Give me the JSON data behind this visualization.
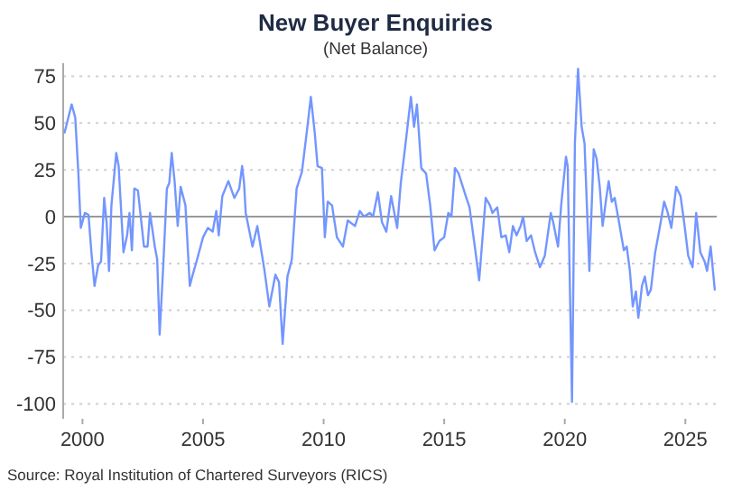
{
  "chart_data": {
    "type": "line",
    "title": "New Buyer Enquiries",
    "subtitle": "(Net Balance)",
    "annotations": [
      "Source: Royal Institution of Chartered Surveyors (RICS)"
    ],
    "xlim": [
      1999.2,
      2026.3
    ],
    "xticks": [
      2000,
      2005,
      2010,
      2015,
      2020,
      2025
    ],
    "ylim": [
      -108,
      82
    ],
    "yticks": [
      -100,
      -75,
      -50,
      -25,
      0,
      25,
      50,
      75
    ],
    "grid": "y",
    "marker": "none",
    "line_style": "solid",
    "ref_lines": [
      {
        "axis": "y",
        "value": 0,
        "color": "#999999"
      }
    ],
    "series": [
      {
        "color": "#7396ff",
        "x": [
          1999.26,
          1999.55,
          1999.7,
          1999.83,
          1999.93,
          2000.1,
          2000.25,
          2000.37,
          2000.5,
          2000.65,
          2000.77,
          2000.9,
          2001.0,
          2001.1,
          2001.2,
          2001.4,
          2001.5,
          2001.7,
          2001.85,
          2001.95,
          2002.05,
          2002.15,
          2002.3,
          2002.55,
          2002.7,
          2002.8,
          2003.0,
          2003.1,
          2003.2,
          2003.35,
          2003.5,
          2003.6,
          2003.7,
          2003.82,
          2003.95,
          2004.07,
          2004.27,
          2004.45,
          2004.55,
          2004.75,
          2005.0,
          2005.2,
          2005.4,
          2005.55,
          2005.65,
          2005.8,
          2006.05,
          2006.3,
          2006.5,
          2006.62,
          2006.7,
          2006.77,
          2007.05,
          2007.25,
          2007.55,
          2007.75,
          2008.0,
          2008.15,
          2008.3,
          2008.5,
          2008.68,
          2008.88,
          2009.1,
          2009.3,
          2009.47,
          2009.63,
          2009.75,
          2009.93,
          2010.05,
          2010.17,
          2010.35,
          2010.55,
          2010.8,
          2011.0,
          2011.3,
          2011.5,
          2011.67,
          2011.92,
          2012.05,
          2012.25,
          2012.42,
          2012.6,
          2012.8,
          2013.05,
          2013.2,
          2013.37,
          2013.62,
          2013.75,
          2013.87,
          2014.05,
          2014.25,
          2014.42,
          2014.6,
          2014.8,
          2015.0,
          2015.17,
          2015.3,
          2015.45,
          2015.6,
          2015.92,
          2016.05,
          2016.3,
          2016.45,
          2016.72,
          2016.9,
          2017.0,
          2017.2,
          2017.37,
          2017.55,
          2017.7,
          2017.85,
          2018.0,
          2018.17,
          2018.27,
          2018.42,
          2018.6,
          2018.77,
          2018.97,
          2019.17,
          2019.42,
          2019.52,
          2019.72,
          2019.85,
          2020.05,
          2020.12,
          2020.3,
          2020.42,
          2020.55,
          2020.7,
          2020.82,
          2021.02,
          2021.2,
          2021.32,
          2021.45,
          2021.57,
          2021.7,
          2021.82,
          2021.95,
          2022.07,
          2022.25,
          2022.45,
          2022.57,
          2022.7,
          2022.82,
          2022.95,
          2023.05,
          2023.2,
          2023.32,
          2023.45,
          2023.57,
          2023.75,
          2023.95,
          2024.12,
          2024.25,
          2024.42,
          2024.62,
          2024.8,
          2024.95,
          2025.12,
          2025.3,
          2025.45,
          2025.62,
          2025.8,
          2025.9,
          2026.05,
          2026.22
        ],
        "values": [
          45,
          60,
          53,
          23,
          -6,
          2,
          1,
          -19,
          -37,
          -26,
          -24,
          10,
          -3,
          -29,
          6,
          34,
          27,
          -19,
          -10,
          2,
          -18,
          15,
          14,
          -16,
          -16,
          2,
          -16,
          -23,
          -63,
          -26,
          15,
          18,
          34,
          19,
          -5,
          16,
          6,
          -37,
          -32,
          -23,
          -11,
          -6,
          -8,
          3,
          -10,
          11,
          19,
          10,
          15,
          27,
          18,
          2,
          -16,
          -5,
          -29,
          -48,
          -31,
          -35,
          -68,
          -32,
          -23,
          15,
          24,
          45,
          64,
          45,
          27,
          26,
          -11,
          8,
          6,
          -11,
          -16,
          -2,
          -5,
          3,
          0,
          2,
          0,
          13,
          -3,
          -8,
          11,
          -6,
          18,
          36,
          64,
          48,
          60,
          26,
          23,
          6,
          -18,
          -13,
          -11,
          2,
          0,
          26,
          23,
          10,
          5,
          -19,
          -34,
          10,
          6,
          2,
          5,
          -11,
          -10,
          -19,
          -5,
          -10,
          -5,
          0,
          -13,
          -10,
          -19,
          -27,
          -21,
          2,
          -3,
          -16,
          6,
          32,
          27,
          -99,
          39,
          79,
          48,
          39,
          -29,
          36,
          31,
          16,
          -5,
          8,
          19,
          8,
          10,
          -3,
          -18,
          -16,
          -29,
          -48,
          -40,
          -54,
          -37,
          -32,
          -42,
          -39,
          -19,
          -5,
          8,
          3,
          -6,
          16,
          11,
          -3,
          -21,
          -27,
          2,
          -19,
          -24,
          -29,
          -16,
          -39
        ]
      }
    ]
  }
}
